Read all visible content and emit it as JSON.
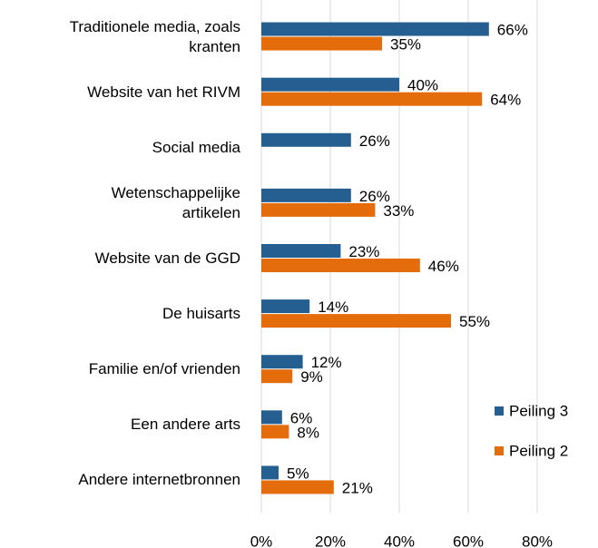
{
  "chart_data": {
    "type": "bar",
    "orientation": "horizontal",
    "categories": [
      "Traditionele media, zoals\nkranten",
      "Website van het RIVM",
      "Social media",
      "Wetenschappelijke\nartikelen",
      "Website van de GGD",
      "De huisarts",
      "Familie en/of vrienden",
      "Een andere arts",
      "Andere internetbronnen"
    ],
    "series": [
      {
        "name": "Peiling 3",
        "color": "#255e91",
        "values": [
          66,
          40,
          26,
          26,
          23,
          14,
          12,
          6,
          5
        ],
        "value_labels": [
          "66%",
          "40%",
          "26%",
          "26%",
          "23%",
          "14%",
          "12%",
          "6%",
          "5%"
        ]
      },
      {
        "name": "Peiling 2",
        "color": "#e46c0a",
        "values": [
          35,
          64,
          null,
          33,
          46,
          55,
          9,
          8,
          21
        ],
        "value_labels": [
          "35%",
          "64%",
          null,
          "33%",
          "46%",
          "55%",
          "9%",
          "8%",
          "21%"
        ]
      }
    ],
    "xlim": [
      0,
      80
    ],
    "xticks": [
      {
        "value": 0,
        "label": "0%"
      },
      {
        "value": 20,
        "label": "20%"
      },
      {
        "value": 40,
        "label": "40%"
      },
      {
        "value": 60,
        "label": "60%"
      },
      {
        "value": 80,
        "label": "80%"
      }
    ],
    "grid": true,
    "legend": "right"
  }
}
